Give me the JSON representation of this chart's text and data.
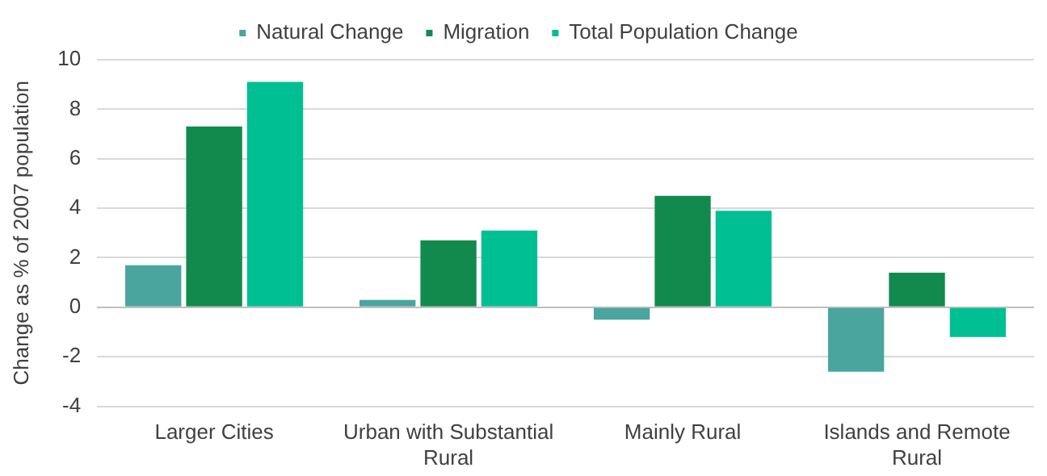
{
  "chart_data": {
    "type": "bar",
    "ylabel": "Change as % of 2007 population",
    "categories": [
      "Larger Cities",
      "Urban with Substantial Rural",
      "Mainly Rural",
      "Islands and Remote Rural"
    ],
    "series": [
      {
        "name": "Natural Change",
        "color": "#4aa59e",
        "values": [
          1.7,
          0.3,
          -0.5,
          -2.6
        ]
      },
      {
        "name": "Migration",
        "color": "#128a4e",
        "values": [
          7.3,
          2.7,
          4.5,
          1.4
        ]
      },
      {
        "name": "Total Population Change",
        "color": "#00bf93",
        "values": [
          9.1,
          3.1,
          3.9,
          -1.2
        ]
      }
    ],
    "ylim": [
      -4,
      10
    ],
    "yticks": [
      -4,
      -2,
      0,
      2,
      4,
      6,
      8,
      10
    ],
    "grid": "y",
    "legend": "top"
  }
}
